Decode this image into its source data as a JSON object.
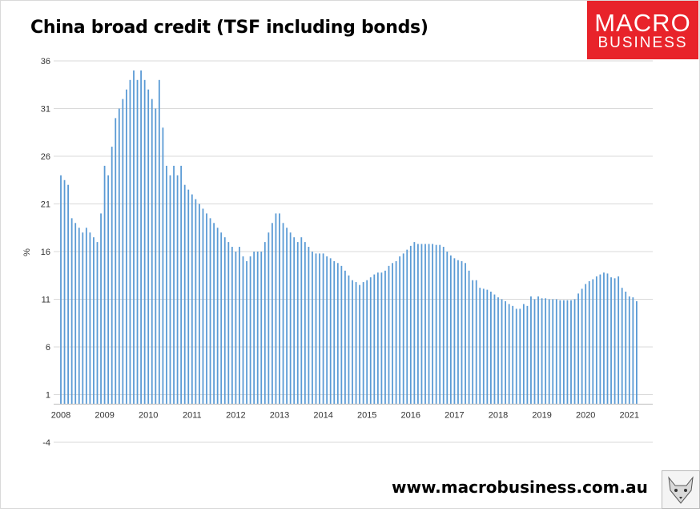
{
  "chart_data": {
    "type": "bar",
    "title": "China broad credit (TSF including bonds)",
    "ylabel": "%",
    "xlabel": "",
    "ylim": [
      -4,
      36
    ],
    "yticks": [
      36,
      31,
      26,
      21,
      16,
      11,
      6,
      1,
      -4
    ],
    "grid": true,
    "bar_color": "#5b9bd5",
    "x_tick_labels": [
      "2008",
      "2009",
      "2010",
      "2011",
      "2012",
      "2013",
      "2014",
      "2015",
      "2016",
      "2017",
      "2018",
      "2019",
      "2020",
      "2021"
    ],
    "x_start": "2008-01",
    "values": [
      24.0,
      23.5,
      23.0,
      19.5,
      19.0,
      18.5,
      18.0,
      18.5,
      18.0,
      17.5,
      17.0,
      20.0,
      25.0,
      24.0,
      27.0,
      30.0,
      31.0,
      32.0,
      33.0,
      34.0,
      35.0,
      34.0,
      35.0,
      34.0,
      33.0,
      32.0,
      31.0,
      34.0,
      29.0,
      25.0,
      24.0,
      25.0,
      24.0,
      25.0,
      23.0,
      22.5,
      22.0,
      21.5,
      21.0,
      20.5,
      20.0,
      19.5,
      19.0,
      18.5,
      18.0,
      17.5,
      17.0,
      16.5,
      16.0,
      16.5,
      15.5,
      15.0,
      15.5,
      16.0,
      16.0,
      16.0,
      17.0,
      18.0,
      19.0,
      20.0,
      20.0,
      19.0,
      18.5,
      18.0,
      17.5,
      17.0,
      17.5,
      17.0,
      16.5,
      16.0,
      15.8,
      15.8,
      15.8,
      15.5,
      15.3,
      15.0,
      14.8,
      14.5,
      14.0,
      13.5,
      13.0,
      12.8,
      12.5,
      12.8,
      13.0,
      13.3,
      13.6,
      13.8,
      13.8,
      14.0,
      14.5,
      14.8,
      15.0,
      15.5,
      15.8,
      16.2,
      16.6,
      17.0,
      16.8,
      16.8,
      16.8,
      16.8,
      16.8,
      16.7,
      16.7,
      16.5,
      16.0,
      15.6,
      15.3,
      15.1,
      15.0,
      14.8,
      14.0,
      13.0,
      13.0,
      12.2,
      12.1,
      12.0,
      11.8,
      11.5,
      11.2,
      11.0,
      10.8,
      10.5,
      10.3,
      10.0,
      10.0,
      10.5,
      10.3,
      11.3,
      11.0,
      11.3,
      11.1,
      11.1,
      11.0,
      11.0,
      11.0,
      10.9,
      10.9,
      10.9,
      10.9,
      11.0,
      11.6,
      12.1,
      12.6,
      12.9,
      13.1,
      13.4,
      13.6,
      13.8,
      13.7,
      13.3,
      13.2,
      13.4,
      12.2,
      11.8,
      11.3,
      11.2,
      10.8
    ]
  },
  "header": {
    "logo_line1": "MACRO",
    "logo_line2": "BUSINESS",
    "logo_color": "#e8232a"
  },
  "footer": {
    "website": "www.macrobusiness.com.au",
    "mascot_icon": "fox-mascot-icon"
  }
}
